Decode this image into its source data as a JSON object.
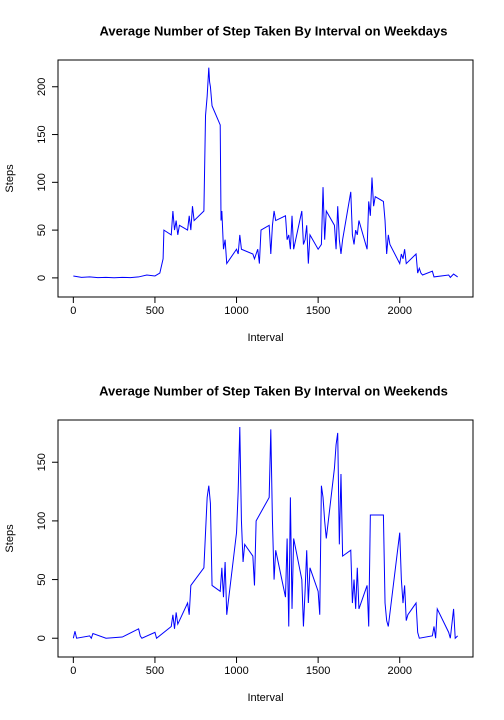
{
  "chart_data": [
    {
      "type": "line",
      "title": "Average Number of Step Taken By Interval on Weekdays",
      "x_label": "Interval",
      "y_label": "Steps",
      "xlim": [
        -94,
        2449
      ],
      "ylim": [
        -20,
        228
      ],
      "xticks": [
        0,
        500,
        1000,
        1500,
        2000
      ],
      "yticks": [
        0,
        50,
        100,
        150,
        200
      ],
      "series": [
        {
          "name": "Weekdays",
          "color": "#0000ff",
          "x": [
            0,
            50,
            100,
            150,
            200,
            250,
            300,
            350,
            400,
            450,
            500,
            530,
            550,
            555,
            600,
            610,
            620,
            630,
            640,
            650,
            700,
            710,
            720,
            730,
            740,
            800,
            810,
            820,
            830,
            835,
            840,
            850,
            900,
            905,
            910,
            920,
            930,
            940,
            1000,
            1010,
            1020,
            1030,
            1100,
            1110,
            1130,
            1140,
            1150,
            1200,
            1210,
            1220,
            1230,
            1240,
            1300,
            1310,
            1320,
            1330,
            1340,
            1350,
            1400,
            1410,
            1420,
            1430,
            1440,
            1450,
            1500,
            1520,
            1530,
            1540,
            1550,
            1600,
            1610,
            1620,
            1630,
            1640,
            1650,
            1700,
            1710,
            1720,
            1730,
            1740,
            1750,
            1800,
            1810,
            1820,
            1830,
            1840,
            1850,
            1900,
            1910,
            1920,
            1930,
            1940,
            2000,
            2010,
            2020,
            2030,
            2040,
            2100,
            2110,
            2120,
            2130,
            2140,
            2200,
            2210,
            2300,
            2310,
            2330,
            2355
          ],
          "values": [
            2,
            0.5,
            1,
            0.3,
            0.5,
            0.2,
            0.5,
            0.3,
            1,
            3,
            2,
            5,
            20,
            50,
            45,
            70,
            50,
            60,
            45,
            55,
            50,
            65,
            50,
            75,
            60,
            70,
            170,
            190,
            220,
            205,
            200,
            180,
            160,
            60,
            70,
            30,
            40,
            15,
            30,
            25,
            45,
            30,
            25,
            20,
            30,
            15,
            50,
            55,
            25,
            55,
            70,
            60,
            65,
            40,
            45,
            30,
            65,
            30,
            70,
            35,
            40,
            55,
            15,
            45,
            30,
            35,
            95,
            40,
            70,
            55,
            30,
            75,
            40,
            25,
            40,
            90,
            45,
            35,
            50,
            45,
            60,
            30,
            80,
            65,
            105,
            75,
            85,
            80,
            60,
            25,
            45,
            35,
            15,
            25,
            20,
            30,
            15,
            25,
            5,
            10,
            5,
            3,
            7,
            1,
            3,
            0.5,
            4,
            1
          ]
        }
      ]
    },
    {
      "type": "line",
      "title": "Average Number of Step Taken By Interval on Weekends",
      "x_label": "Interval",
      "y_label": "Steps",
      "xlim": [
        -94,
        2449
      ],
      "ylim": [
        -16,
        186
      ],
      "xticks": [
        0,
        500,
        1000,
        1500,
        2000
      ],
      "yticks": [
        0,
        50,
        100,
        150
      ],
      "series": [
        {
          "name": "Weekends",
          "color": "#0000ff",
          "x": [
            0,
            10,
            20,
            100,
            110,
            120,
            200,
            300,
            400,
            410,
            420,
            500,
            510,
            600,
            610,
            620,
            630,
            640,
            700,
            710,
            720,
            800,
            820,
            830,
            840,
            850,
            900,
            910,
            920,
            930,
            940,
            1000,
            1010,
            1020,
            1030,
            1040,
            1050,
            1100,
            1110,
            1120,
            1200,
            1210,
            1220,
            1230,
            1240,
            1300,
            1310,
            1320,
            1330,
            1340,
            1350,
            1400,
            1410,
            1420,
            1430,
            1440,
            1450,
            1500,
            1510,
            1520,
            1530,
            1540,
            1550,
            1600,
            1610,
            1620,
            1630,
            1640,
            1650,
            1700,
            1710,
            1720,
            1730,
            1740,
            1750,
            1800,
            1810,
            1820,
            1900,
            1910,
            1920,
            1930,
            2000,
            2010,
            2020,
            2030,
            2040,
            2050,
            2100,
            2110,
            2120,
            2200,
            2210,
            2220,
            2230,
            2300,
            2310,
            2330,
            2340,
            2355
          ],
          "values": [
            0,
            6,
            0,
            2,
            0,
            4,
            0,
            1,
            8,
            2,
            0,
            5,
            0,
            10,
            20,
            8,
            22,
            12,
            30,
            20,
            45,
            60,
            120,
            130,
            115,
            45,
            40,
            60,
            35,
            65,
            20,
            90,
            125,
            180,
            100,
            65,
            80,
            70,
            45,
            100,
            120,
            178,
            100,
            50,
            75,
            35,
            85,
            10,
            120,
            25,
            85,
            50,
            10,
            40,
            75,
            30,
            60,
            40,
            20,
            130,
            120,
            100,
            85,
            145,
            165,
            175,
            80,
            140,
            70,
            75,
            30,
            50,
            25,
            60,
            25,
            45,
            10,
            105,
            105,
            30,
            15,
            10,
            90,
            50,
            30,
            45,
            15,
            20,
            30,
            5,
            0,
            2,
            10,
            0,
            25,
            5,
            0,
            25,
            0,
            2
          ]
        }
      ]
    }
  ]
}
